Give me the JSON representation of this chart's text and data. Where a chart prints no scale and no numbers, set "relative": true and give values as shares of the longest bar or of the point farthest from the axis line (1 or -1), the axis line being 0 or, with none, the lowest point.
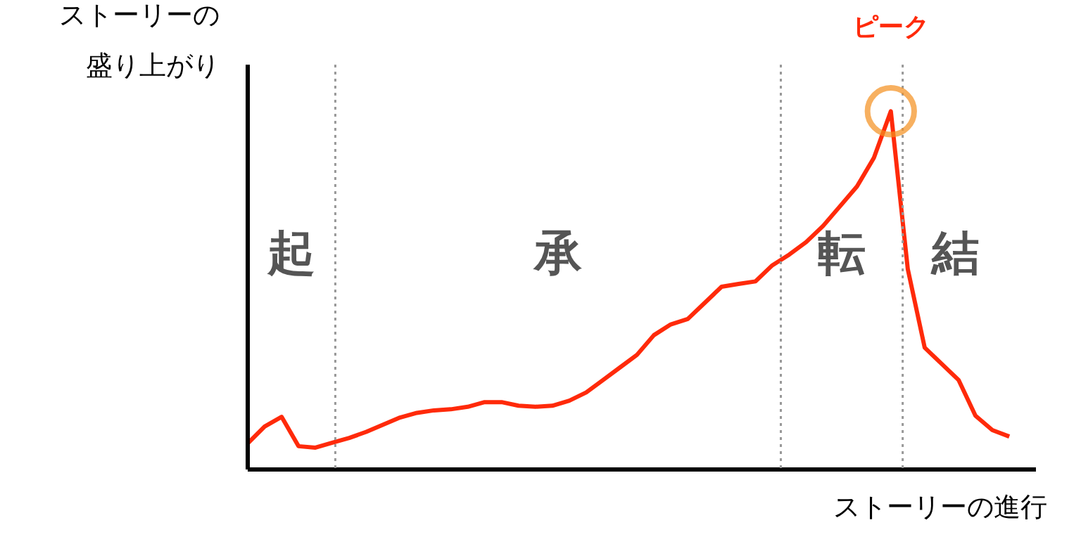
{
  "chart_data": {
    "type": "line",
    "relative": true,
    "xlabel": "ストーリーの進行",
    "ylabel": "ストーリーの盛り上がり",
    "categories": [
      null,
      null,
      null,
      null,
      null,
      null,
      null,
      null,
      null,
      null,
      null,
      null,
      null,
      null,
      null,
      null,
      null,
      null,
      null,
      null,
      null,
      null,
      null,
      null,
      null,
      null,
      null,
      null,
      null,
      null,
      null,
      null,
      null,
      null,
      null,
      null,
      null,
      null,
      null,
      null,
      null,
      null,
      null,
      null,
      null,
      null
    ],
    "series": [
      {
        "color": "#ff2a0a",
        "values": [
          0.073,
          0.12,
          0.147,
          0.065,
          0.061,
          0.075,
          0.088,
          0.105,
          0.125,
          0.145,
          0.158,
          0.165,
          0.168,
          0.175,
          0.188,
          0.188,
          0.178,
          0.175,
          0.178,
          0.192,
          0.215,
          0.25,
          0.285,
          0.32,
          0.375,
          0.405,
          0.42,
          0.465,
          0.51,
          0.518,
          0.525,
          0.57,
          0.6,
          0.635,
          0.68,
          0.735,
          0.79,
          0.87,
          1,
          0.56,
          0.34,
          0.295,
          0.25,
          0.15,
          0.11,
          0.092
        ]
      }
    ],
    "annotations": [
      "起",
      "承",
      "転",
      "結",
      "ピーク"
    ],
    "grid": false,
    "line_style": "solid",
    "marker": "none"
  }
}
